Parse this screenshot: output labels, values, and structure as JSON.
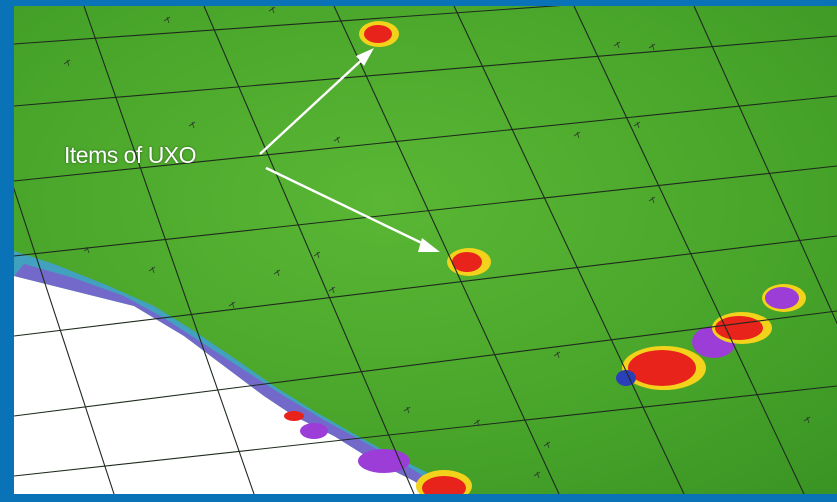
{
  "callout": {
    "text": "Items of UXO"
  },
  "colors": {
    "frame": "#0a73b8",
    "background_field": "#4aa82a",
    "no_data": "#ffffff",
    "anomaly_high": "#e8231c",
    "anomaly_low": "#9b3dd6",
    "anomaly_edge": "#f2d21a",
    "transition": "#3fa0d8"
  },
  "icons": {
    "arrow": "white-arrow"
  }
}
